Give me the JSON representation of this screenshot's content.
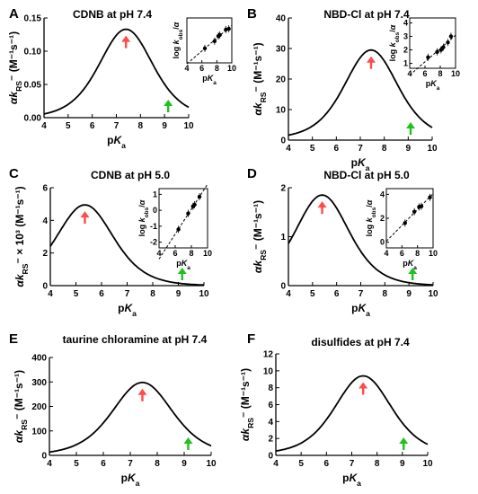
{
  "chart_data": [
    {
      "panel": "A",
      "title": "CDNB at pH 7.4",
      "type": "line",
      "xlabel": "pK_a",
      "ylabel": "αk_RS⁻ (M⁻¹s⁻¹)",
      "xlim": [
        4,
        10
      ],
      "ylim": [
        0,
        0.15
      ],
      "xticks": [
        "4",
        "5",
        "6",
        "7",
        "8",
        "9",
        "10"
      ],
      "yticks": [
        "0.00",
        "0.05",
        "0.10",
        "0.15"
      ],
      "peak": {
        "x": 7.4,
        "y": 0.133,
        "width": 1.5,
        "base": 0
      },
      "arrows": [
        {
          "x": 7.4,
          "color": "#ff4a4a"
        },
        {
          "x": 9.15,
          "color": "#1fc11f"
        }
      ],
      "inset": {
        "type": "scatter",
        "xlabel": "pK_a",
        "ylabel": "log k_obs/α",
        "xlim": [
          4,
          10
        ],
        "xticks": [
          "4",
          "6",
          "8",
          "10"
        ],
        "yticks": [],
        "points": [
          {
            "x": 6.4,
            "y": 0.28
          },
          {
            "x": 7.7,
            "y": 0.48
          },
          {
            "x": 8.2,
            "y": 0.62
          },
          {
            "x": 8.4,
            "y": 0.65
          },
          {
            "x": 9.2,
            "y": 0.8
          },
          {
            "x": 9.6,
            "y": 0.82
          }
        ]
      }
    },
    {
      "panel": "B",
      "title": "NBD-Cl at pH 7.4",
      "type": "line",
      "xlabel": "pK_a",
      "ylabel": "αk_RS⁻ (M⁻¹s⁻¹)",
      "xlim": [
        4,
        10
      ],
      "ylim": [
        0,
        40
      ],
      "xticks": [
        "4",
        "5",
        "6",
        "7",
        "8",
        "9",
        "10"
      ],
      "yticks": [
        "0",
        "10",
        "20",
        "30",
        "40"
      ],
      "peak": {
        "x": 7.45,
        "y": 29.5,
        "width": 1.5,
        "base": 0.5
      },
      "arrows": [
        {
          "x": 7.45,
          "color": "#ff4a4a"
        },
        {
          "x": 9.1,
          "color": "#1fc11f"
        }
      ],
      "inset": {
        "type": "scatter",
        "xlabel": "pK_a",
        "ylabel": "log k_obs/α",
        "xlim": [
          4,
          10
        ],
        "xticks": [
          "4",
          "6",
          "8",
          "10"
        ],
        "yticks": [
          "1",
          "2",
          "3",
          "4"
        ],
        "points": [
          {
            "x": 6.4,
            "y": 1.45
          },
          {
            "x": 7.6,
            "y": 1.85
          },
          {
            "x": 8.1,
            "y": 2.0
          },
          {
            "x": 8.4,
            "y": 2.2
          },
          {
            "x": 9.0,
            "y": 2.55
          },
          {
            "x": 9.4,
            "y": 3.0
          }
        ]
      }
    },
    {
      "panel": "C",
      "title": "CDNB at pH 5.0",
      "type": "line",
      "xlabel": "pK_a",
      "ylabel": "αk_RS⁻ × 10³ (M⁻¹s⁻¹)",
      "xlim": [
        4,
        10
      ],
      "ylim": [
        0,
        6
      ],
      "xticks": [
        "4",
        "5",
        "6",
        "7",
        "8",
        "9",
        "10"
      ],
      "yticks": [
        "0",
        "2",
        "4",
        "6"
      ],
      "peak": {
        "x": 5.35,
        "y": 4.95,
        "width": 1.5,
        "base": 0
      },
      "arrows": [
        {
          "x": 5.35,
          "color": "#ff4a4a"
        },
        {
          "x": 9.15,
          "color": "#1fc11f"
        }
      ],
      "inset": {
        "type": "scatter",
        "xlabel": "pK_a",
        "ylabel": "log k_obs/α",
        "xlim": [
          4,
          10
        ],
        "xticks": [
          "4",
          "6",
          "8",
          "10"
        ],
        "yticks": [
          "-2",
          "-1",
          "0",
          "1"
        ],
        "points": [
          {
            "x": 6.4,
            "y": -1.2
          },
          {
            "x": 7.6,
            "y": -0.2
          },
          {
            "x": 8.2,
            "y": 0.25
          },
          {
            "x": 8.4,
            "y": 0.35
          },
          {
            "x": 9.0,
            "y": 0.85
          }
        ]
      }
    },
    {
      "panel": "D",
      "title": "NBD-Cl at pH 5.0",
      "type": "line",
      "xlabel": "pK_a",
      "ylabel": "αk_RS⁻ (M⁻¹s⁻¹)",
      "xlim": [
        4,
        10
      ],
      "ylim": [
        0,
        2
      ],
      "xticks": [
        "4",
        "5",
        "6",
        "7",
        "8",
        "9",
        "10"
      ],
      "yticks": [
        "0",
        "1",
        "2"
      ],
      "peak": {
        "x": 5.4,
        "y": 1.85,
        "width": 1.5,
        "base": 0
      },
      "arrows": [
        {
          "x": 5.4,
          "color": "#ff4a4a"
        },
        {
          "x": 9.15,
          "color": "#1fc11f"
        }
      ],
      "inset": {
        "type": "scatter",
        "xlabel": "pK_a",
        "ylabel": "log k_obs/α",
        "xlim": [
          4,
          10
        ],
        "xticks": [
          "4",
          "6",
          "8",
          "10"
        ],
        "yticks": [
          "0",
          "2",
          "4"
        ],
        "points": [
          {
            "x": 6.4,
            "y": 1.6
          },
          {
            "x": 7.6,
            "y": 2.55
          },
          {
            "x": 8.2,
            "y": 2.95
          },
          {
            "x": 8.5,
            "y": 3.0
          },
          {
            "x": 9.6,
            "y": 3.75
          }
        ]
      }
    },
    {
      "panel": "E",
      "title": "taurine chloramine at pH 7.4",
      "type": "line",
      "xlabel": "pK_a",
      "ylabel": "αk_RS⁻ (M⁻¹s⁻¹)",
      "xlim": [
        4,
        10
      ],
      "ylim": [
        0,
        400
      ],
      "xticks": [
        "4",
        "5",
        "6",
        "7",
        "8",
        "9",
        "10"
      ],
      "yticks": [
        "0",
        "100",
        "200",
        "300",
        "400"
      ],
      "peak": {
        "x": 7.45,
        "y": 298,
        "width": 1.5,
        "base": 2
      },
      "arrows": [
        {
          "x": 7.45,
          "color": "#ff4a4a"
        },
        {
          "x": 9.15,
          "color": "#1fc11f"
        }
      ],
      "inset": null
    },
    {
      "panel": "F",
      "title": "disulfides at pH 7.4",
      "type": "line",
      "xlabel": "pK_a",
      "ylabel": "αk_RS⁻ (M⁻¹s⁻¹)",
      "xlim": [
        4,
        10
      ],
      "ylim": [
        0,
        12
      ],
      "xticks": [
        "4",
        "5",
        "6",
        "7",
        "8",
        "9",
        "10"
      ],
      "yticks": [
        "0",
        "2",
        "4",
        "6",
        "8",
        "10",
        "12"
      ],
      "peak": {
        "x": 7.45,
        "y": 9.4,
        "width": 1.5,
        "base": 0.15
      },
      "arrows": [
        {
          "x": 7.45,
          "color": "#ff4a4a"
        },
        {
          "x": 9.05,
          "color": "#1fc11f"
        }
      ],
      "inset": null
    }
  ]
}
